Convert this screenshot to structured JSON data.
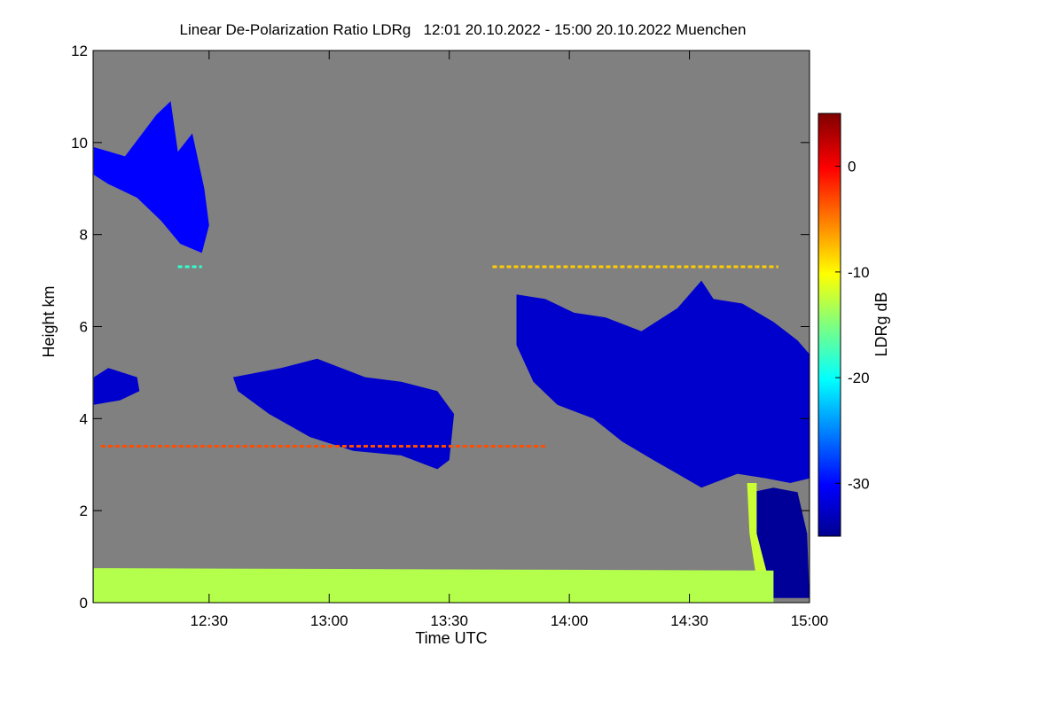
{
  "chart_data": {
    "type": "heatmap",
    "title": "Linear De-Polarization Ratio LDRg   12:01 20.10.2022 - 15:00 20.10.2022 Muenchen",
    "xlabel": "Time UTC",
    "ylabel": "Height km",
    "x_range_hours": [
      12.017,
      15.0
    ],
    "ylim": [
      0,
      12
    ],
    "x_ticks": [
      {
        "t": 12.5,
        "label": "12:30"
      },
      {
        "t": 13.0,
        "label": "13:00"
      },
      {
        "t": 13.5,
        "label": "13:30"
      },
      {
        "t": 14.0,
        "label": "14:00"
      },
      {
        "t": 14.5,
        "label": "14:30"
      },
      {
        "t": 15.0,
        "label": "15:00"
      }
    ],
    "y_ticks": [
      0,
      2,
      4,
      6,
      8,
      10,
      12
    ],
    "colorbar": {
      "label": "LDRg dB",
      "range": [
        -35,
        5
      ],
      "ticks": [
        0,
        -10,
        -20,
        -30
      ],
      "colormap": "jet"
    },
    "background_color": "#808080",
    "features": [
      {
        "name": "cirrus",
        "ldr_db": -30,
        "polygon": [
          [
            12.02,
            9.9
          ],
          [
            12.15,
            9.7
          ],
          [
            12.28,
            10.6
          ],
          [
            12.34,
            10.9
          ],
          [
            12.37,
            9.8
          ],
          [
            12.43,
            10.2
          ],
          [
            12.48,
            9.0
          ],
          [
            12.5,
            8.2
          ],
          [
            12.47,
            7.6
          ],
          [
            12.38,
            7.8
          ],
          [
            12.3,
            8.3
          ],
          [
            12.2,
            8.8
          ],
          [
            12.08,
            9.1
          ],
          [
            12.02,
            9.3
          ]
        ]
      },
      {
        "name": "mid-level cloud 1",
        "ldr_db": -32,
        "polygon": [
          [
            12.02,
            4.9
          ],
          [
            12.08,
            5.1
          ],
          [
            12.2,
            4.9
          ],
          [
            12.21,
            4.6
          ],
          [
            12.13,
            4.4
          ],
          [
            12.02,
            4.3
          ]
        ]
      },
      {
        "name": "mid-level cloud 2",
        "ldr_db": -32,
        "polygon": [
          [
            12.6,
            4.9
          ],
          [
            12.8,
            5.1
          ],
          [
            12.95,
            5.3
          ],
          [
            13.15,
            4.9
          ],
          [
            13.3,
            4.8
          ],
          [
            13.45,
            4.6
          ],
          [
            13.52,
            4.1
          ],
          [
            13.5,
            3.1
          ],
          [
            13.45,
            2.9
          ],
          [
            13.3,
            3.2
          ],
          [
            13.1,
            3.3
          ],
          [
            12.92,
            3.6
          ],
          [
            12.75,
            4.1
          ],
          [
            12.62,
            4.6
          ]
        ]
      },
      {
        "name": "mid-level cloud 3",
        "ldr_db": -32,
        "polygon": [
          [
            13.78,
            6.7
          ],
          [
            13.9,
            6.6
          ],
          [
            14.02,
            6.3
          ],
          [
            14.15,
            6.2
          ],
          [
            14.3,
            5.9
          ],
          [
            14.45,
            6.4
          ],
          [
            14.55,
            7.0
          ],
          [
            14.6,
            6.6
          ],
          [
            14.72,
            6.5
          ],
          [
            14.85,
            6.1
          ],
          [
            14.95,
            5.7
          ],
          [
            15.0,
            5.4
          ],
          [
            15.0,
            2.7
          ],
          [
            14.92,
            2.6
          ],
          [
            14.82,
            2.7
          ],
          [
            14.7,
            2.8
          ],
          [
            14.55,
            2.5
          ],
          [
            14.45,
            2.8
          ],
          [
            14.35,
            3.1
          ],
          [
            14.22,
            3.5
          ],
          [
            14.1,
            4.0
          ],
          [
            13.95,
            4.3
          ],
          [
            13.85,
            4.8
          ],
          [
            13.78,
            5.6
          ]
        ]
      },
      {
        "name": "virga rain column",
        "ldr_db": -34,
        "polygon": [
          [
            14.76,
            2.4
          ],
          [
            14.85,
            2.5
          ],
          [
            14.95,
            2.4
          ],
          [
            14.99,
            1.5
          ],
          [
            15.0,
            0.1
          ],
          [
            14.82,
            0.1
          ],
          [
            14.78,
            1.0
          ],
          [
            14.75,
            2.0
          ]
        ]
      },
      {
        "name": "melting layer",
        "ldr_db": -12,
        "polygon": [
          [
            14.74,
            2.6
          ],
          [
            14.78,
            2.6
          ],
          [
            14.78,
            1.5
          ],
          [
            14.82,
            0.7
          ],
          [
            14.85,
            0.2
          ],
          [
            14.82,
            0.15
          ],
          [
            14.78,
            0.5
          ],
          [
            14.75,
            1.5
          ]
        ]
      },
      {
        "name": "aerosol boundary layer",
        "ldr_db": -13,
        "polygon": [
          [
            12.02,
            0.0
          ],
          [
            14.85,
            0.0
          ],
          [
            14.85,
            0.7
          ],
          [
            12.02,
            0.75
          ]
        ]
      }
    ],
    "annotations": [
      {
        "name": "artifact line",
        "t_start": 12.37,
        "t_end": 12.47,
        "height": 7.3,
        "ldr_db": -18
      },
      {
        "name": "artifact line",
        "t_start": 13.68,
        "t_end": 14.87,
        "height": 7.3,
        "ldr_db": -8
      },
      {
        "name": "faint layer",
        "t_start": 12.05,
        "t_end": 13.9,
        "height": 3.4,
        "ldr_db": -3
      }
    ]
  }
}
